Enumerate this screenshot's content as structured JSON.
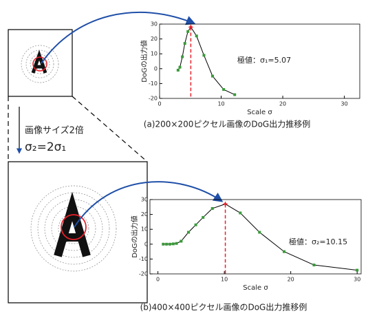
{
  "left_labels": {
    "scale_text": "画像サイズ2倍",
    "sigma_relation": "σ₂=2σ₁"
  },
  "chart_data": [
    {
      "type": "line",
      "caption": "(a)200×200ピクセル画像のDoG出力推移例",
      "x_label": "Scale σ",
      "y_label": "DoGの出力値",
      "annotation": "極値：σ₁=5.07",
      "x": [
        3.0,
        3.3,
        3.7,
        4.1,
        4.6,
        5.07,
        6.0,
        7.2,
        8.6,
        10.4,
        12.2
      ],
      "values": [
        -1,
        1,
        8,
        17,
        25,
        28,
        22,
        9,
        -5,
        -14,
        -17.5
      ],
      "color": "#000000",
      "marker_color": "#3a9a3a",
      "peak_color": "#e8202a",
      "xlim": [
        0,
        32.5
      ],
      "ylim": [
        -20,
        30
      ],
      "xticks": [
        0,
        10,
        20,
        30
      ],
      "yticks": [
        -20,
        -10,
        0,
        10,
        20,
        30
      ]
    },
    {
      "type": "line",
      "caption": "(b)400×400ピクセル画像のDoG出力推移例",
      "x_label": "Scale σ",
      "y_label": "DoGの出力値",
      "annotation": "極値：σ₂=10.15",
      "x": [
        0.8,
        1.3,
        1.8,
        2.3,
        2.8,
        3.5,
        4.6,
        5.7,
        6.8,
        8.2,
        10.15,
        12.4,
        15.3,
        19,
        23.5,
        30
      ],
      "values": [
        0,
        0,
        0,
        0.2,
        0.5,
        2,
        8,
        13,
        18,
        24,
        27,
        21,
        8,
        -5,
        -14,
        -17.5
      ],
      "color": "#000000",
      "marker_color": "#3a9a3a",
      "peak_color": "#e8202a",
      "xlim": [
        -1.2,
        30.6
      ],
      "ylim": [
        -20,
        30
      ],
      "xticks": [
        0,
        10,
        20,
        30
      ],
      "yticks": [
        -20,
        -10,
        0,
        10,
        20,
        30
      ]
    }
  ]
}
